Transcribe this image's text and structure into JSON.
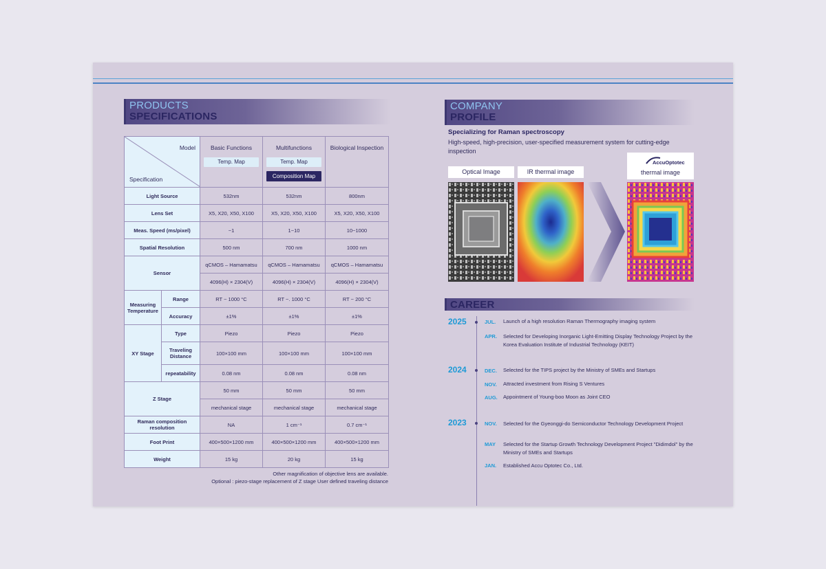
{
  "products_heading": {
    "line1": "PRODUCTS",
    "line2": "SPECIFICATIONS"
  },
  "spec_table": {
    "corner_model": "Model",
    "corner_spec": "Specification",
    "models": [
      {
        "name": "Basic Functions",
        "tags": [
          "Temp. Map"
        ]
      },
      {
        "name": "Multifunctions",
        "tags": [
          "Temp. Map",
          "Composition Map"
        ]
      },
      {
        "name": "Biological Inspection",
        "tags": []
      }
    ],
    "rows": {
      "light_source": {
        "label": "Light Source",
        "values": [
          "532nm",
          "532nm",
          "800nm"
        ]
      },
      "lens_set": {
        "label": "Lens Set",
        "values": [
          "X5, X20, X50, X100",
          "X5, X20, X50, X100",
          "X5, X20, X50, X100"
        ]
      },
      "meas_speed": {
        "label": "Meas. Speed (ms/pixel)",
        "values": [
          "~1",
          "1~10",
          "10~1000"
        ]
      },
      "spatial_res": {
        "label": "Spatial Resolution",
        "values": [
          "500 nm",
          "700 nm",
          "1000 nm"
        ]
      },
      "sensor": {
        "label": "Sensor",
        "values1": [
          "qCMOS – Hamamatsu",
          "qCMOS – Hamamatsu",
          "qCMOS – Hamamatsu"
        ],
        "values2": [
          "4096(H) × 2304(V)",
          "4096(H) × 2304(V)",
          "4096(H) × 2304(V)"
        ]
      },
      "measuring_temp": {
        "label": "Measuring Temperature",
        "range_label": "Range",
        "range": [
          "RT ~ 1000 °C",
          "RT ~. 1000 °C",
          "RT ~ 200 °C"
        ],
        "accuracy_label": "Accuracy",
        "accuracy": [
          "±1%",
          "±1%",
          "±1%"
        ]
      },
      "xy_stage": {
        "label": "XY Stage",
        "type_label": "Type",
        "type": [
          "Piezo",
          "Piezo",
          "Piezo"
        ],
        "travel_label": "Traveling Distance",
        "travel": [
          "100×100 mm",
          "100×100 mm",
          "100×100 mm"
        ],
        "repeat_label": "repeatability",
        "repeat": [
          "0.08 nm",
          "0.08 nm",
          "0.08 nm"
        ]
      },
      "z_stage": {
        "label": "Z Stage",
        "values1": [
          "50 mm",
          "50 mm",
          "50 mm"
        ],
        "values2": [
          "mechanical stage",
          "mechanical stage",
          "mechanical stage"
        ]
      },
      "raman": {
        "label": "Raman composition resolution",
        "values": [
          "NA",
          "1 cm⁻¹",
          "0.7 cm⁻¹"
        ]
      },
      "foot_print": {
        "label": "Foot Print",
        "values": [
          "400×500×1200 mm",
          "400×500×1200 mm",
          "400×500×1200 mm"
        ]
      },
      "weight": {
        "label": "Weight",
        "values": [
          "15 kg",
          "20 kg",
          "15 kg"
        ]
      }
    },
    "notes": [
      "Other magnification of objective lens are available.",
      "Optional : piezo-stage replacement of Z stage User defined traveling distance"
    ]
  },
  "company_heading": {
    "line1": "COMPANY",
    "line2": "PROFILE"
  },
  "company": {
    "title": "Specializing for Raman spectroscopy",
    "description": "High-speed, high-precision, user-specified measurement system for cutting-edge inspection",
    "labels": {
      "optical": "Optical Image",
      "ir": "IR thermal image",
      "thermal": "thermal image"
    },
    "logo_text": "AccuOptotec"
  },
  "career_heading": "CAREER",
  "career": [
    {
      "year": "2025",
      "events": [
        {
          "month": "JUL.",
          "text": "Launch of a high resolution Raman Thermography imaging system"
        },
        {
          "month": "APR.",
          "text": "Selected for Developing Inorganic Light-Emitting Display Technology Project by the Korea Evaluation Institute of Industrial Technology (KEIT)"
        }
      ]
    },
    {
      "year": "2024",
      "events": [
        {
          "month": "DEC.",
          "text": "Selected for the TIPS project by the Ministry of SMEs and Startups"
        },
        {
          "month": "NOV.",
          "text": "Attracted investment from Rising S Ventures"
        },
        {
          "month": "AUG.",
          "text": "Appointment of Young-boo Moon as Joint CEO"
        }
      ]
    },
    {
      "year": "2023",
      "events": [
        {
          "month": "NOV.",
          "text": "Selected for the Gyeonggi-do Semiconductor Technology Development Project"
        },
        {
          "month": "MAY",
          "text": "Selected for the Startup Growth Technology Development Project \"Didimdol\" by the Ministry of SMEs and Startups"
        },
        {
          "month": "JAN.",
          "text": "Established Accu Optotec Co., Ltd."
        }
      ]
    }
  ]
}
